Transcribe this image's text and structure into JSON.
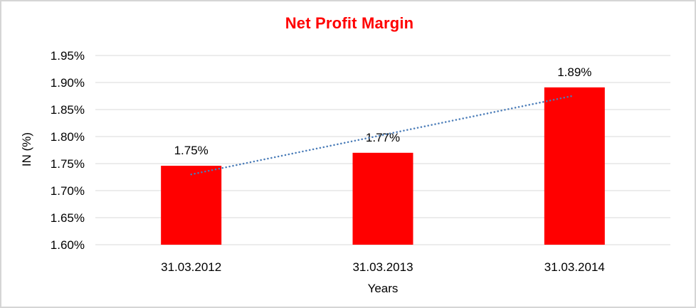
{
  "chart_data": {
    "type": "bar",
    "title": "Net Profit Margin",
    "title_color": "#ff0000",
    "xlabel": "Years",
    "ylabel": "IN (%)",
    "categories": [
      "31.03.2012",
      "31.03.2013",
      "31.03.2014"
    ],
    "values": [
      1.75,
      1.77,
      1.89
    ],
    "bar_labels": [
      "1.75%",
      "1.77%",
      "1.89%"
    ],
    "bar_heights_precise": [
      1.746,
      1.77,
      1.891
    ],
    "ylim": [
      1.6,
      1.95
    ],
    "ytick_step": 0.05,
    "ytick_labels": [
      "1.60%",
      "1.65%",
      "1.70%",
      "1.75%",
      "1.80%",
      "1.85%",
      "1.90%",
      "1.95%"
    ],
    "grid": true,
    "legend": "none",
    "bar_color": "#ff0000",
    "gridline_color": "#d9d9d9",
    "text_color": "#000000",
    "trendline": {
      "type": "linear",
      "style": "dotted",
      "color": "#4a7cb8",
      "start_value": 1.73,
      "end_value": 1.876
    }
  }
}
